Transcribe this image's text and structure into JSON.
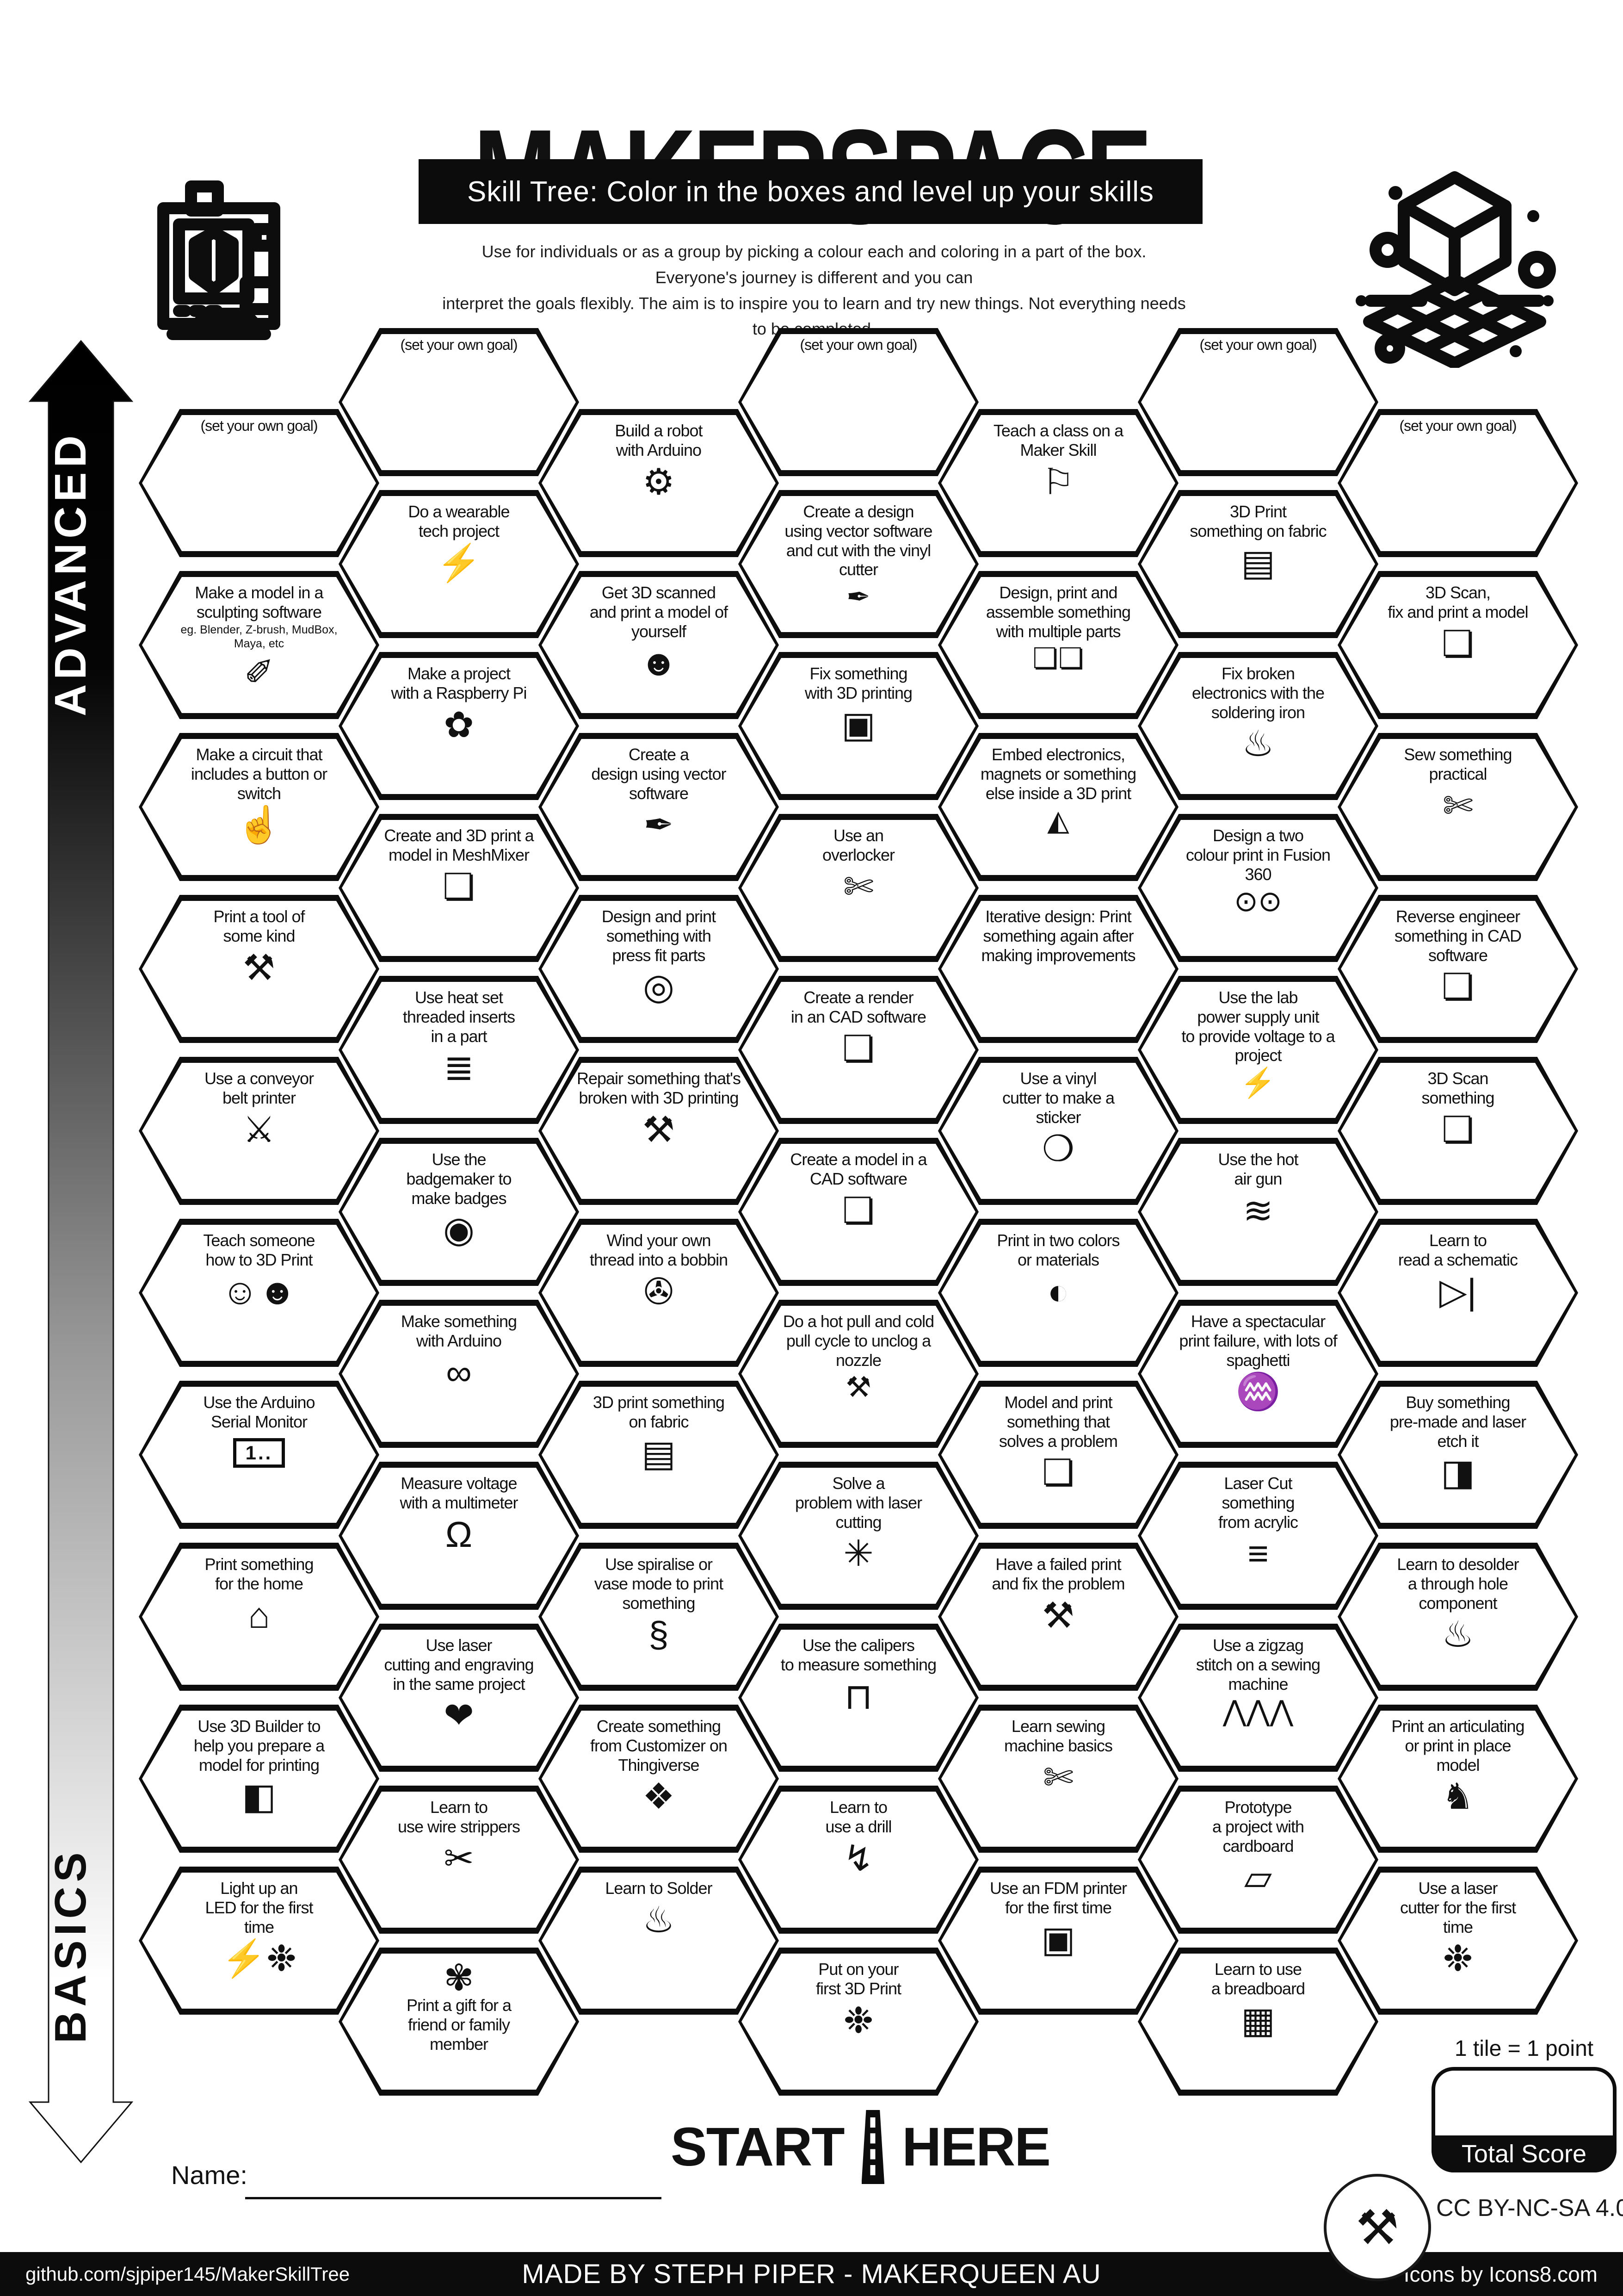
{
  "header": {
    "title": "MAKERSPACE",
    "subtitle": "Skill Tree:  Color in the boxes and level up your skills",
    "description": "Use for individuals or as a group by picking a colour each and coloring in a part of the box.  Everyone's journey is different and you can\ninterpret the goals flexibly.  The aim is to inspire you to learn and try new things. Not everything needs to be completed."
  },
  "axis": {
    "advanced": "ADVANCED",
    "basics": "BASICS"
  },
  "start": {
    "start_label": "START",
    "here_label": "HERE"
  },
  "name_label": "Name:",
  "score": {
    "note": "1 tile = 1 point",
    "total_label": "Total Score"
  },
  "license_label": "CC BY-NC-SA 4.0",
  "footer": {
    "left": "github.com/sjpiper145/MakerSkillTree",
    "center": "MADE BY STEPH PIPER  -  MAKERQUEEN AU",
    "right": "Icons by Icons8.com"
  },
  "accent_color": "#0d0d0d",
  "hexes": [
    {
      "id": "goal-col1",
      "col": 1,
      "row": 0,
      "goal": true,
      "label": "(set your own goal)",
      "icon": null
    },
    {
      "id": "sculpting-model",
      "col": 1,
      "row": 1,
      "label": "Make a model in a\nsculpting software",
      "sub": "eg. Blender, Z-brush, MudBox,\nMaya, etc",
      "icon": "sculpture-icon",
      "glyph": "✐"
    },
    {
      "id": "circuit-button",
      "col": 1,
      "row": 2,
      "label": "Make a circuit that\nincludes a button or\nswitch",
      "icon": "finger-press-icon",
      "glyph": "☝"
    },
    {
      "id": "print-tool",
      "col": 1,
      "row": 3,
      "label": "Print a tool of\nsome kind",
      "icon": "crossed-tools-icon",
      "glyph": "⚒"
    },
    {
      "id": "conveyor-printer",
      "col": 1,
      "row": 4,
      "label": "Use a conveyor\nbelt printer",
      "icon": "sword-icon",
      "glyph": "⚔"
    },
    {
      "id": "teach-3dprint",
      "col": 1,
      "row": 5,
      "label": "Teach someone\nhow to 3D Print",
      "icon": "two-people-icon",
      "glyph": "☺☻"
    },
    {
      "id": "serial-monitor",
      "col": 1,
      "row": 6,
      "label": "Use the Arduino\nSerial Monitor",
      "icon": "serial-monitor-icon",
      "glyph": "1..",
      "glyph_class": "icon-box"
    },
    {
      "id": "print-home",
      "col": 1,
      "row": 7,
      "label": "Print something\nfor the home",
      "icon": "house-icon",
      "glyph": "⌂"
    },
    {
      "id": "3d-builder",
      "col": 1,
      "row": 8,
      "label": "Use 3D Builder to\nhelp you prepare a\nmodel for printing",
      "icon": "builder-shape-icon",
      "glyph": "◧"
    },
    {
      "id": "led-first-time",
      "col": 1,
      "row": 9,
      "label": "Light up an\nLED for the first\ntime",
      "icon": "led-party-icon",
      "glyph": "⚡❉"
    },
    {
      "id": "goal-col2",
      "col": 2,
      "row": 0,
      "goal": true,
      "label": "(set your own goal)",
      "icon": null
    },
    {
      "id": "wearable-tech",
      "col": 2,
      "row": 1,
      "label": "Do a wearable\ntech project",
      "icon": "led-bolt-icon",
      "glyph": "⚡"
    },
    {
      "id": "raspberry-pi",
      "col": 2,
      "row": 2,
      "label": "Make a project\nwith a Raspberry Pi",
      "icon": "raspberry-icon",
      "glyph": "✿"
    },
    {
      "id": "meshmixer",
      "col": 2,
      "row": 3,
      "label": "Create and 3D print a\nmodel in MeshMixer",
      "icon": "cube-icon",
      "glyph": "❏"
    },
    {
      "id": "heat-set-inserts",
      "col": 2,
      "row": 4,
      "label": "Use heat set\nthreaded inserts\nin a part",
      "icon": "threaded-screw-icon",
      "glyph": "≣"
    },
    {
      "id": "badgemaker",
      "col": 2,
      "row": 5,
      "label": "Use the\nbadgemaker to\nmake badges",
      "icon": "badge-icon",
      "glyph": "◉"
    },
    {
      "id": "arduino-something",
      "col": 2,
      "row": 6,
      "label": "Make something\nwith Arduino",
      "icon": "arduino-icon",
      "glyph": "∞"
    },
    {
      "id": "multimeter",
      "col": 2,
      "row": 7,
      "label": "Measure voltage\nwith a multimeter",
      "icon": "multimeter-icon",
      "glyph": "Ω"
    },
    {
      "id": "laser-engrave-project",
      "col": 2,
      "row": 8,
      "label": "Use laser\ncutting and engraving\nin the same project",
      "icon": "laser-heart-icon",
      "glyph": "❤"
    },
    {
      "id": "wire-strippers",
      "col": 2,
      "row": 9,
      "label": "Learn to\nuse wire strippers",
      "icon": "wire-strippers-icon",
      "glyph": "✂"
    },
    {
      "id": "print-gift",
      "col": 2,
      "row": 10,
      "label": "Print a gift for a\nfriend or family\nmember",
      "icon": "gift-bow-icon",
      "glyph": "✾",
      "icon_pos": "top"
    },
    {
      "id": "robot-arduino",
      "col": 3,
      "row": 0,
      "label": "Build a robot\nwith Arduino",
      "icon": "robot-icon",
      "glyph": "⚙"
    },
    {
      "id": "get-3d-scanned",
      "col": 3,
      "row": 1,
      "label": "Get 3D scanned\nand print a model of\nyourself",
      "icon": "scanned-head-icon",
      "glyph": "☻"
    },
    {
      "id": "vector-design",
      "col": 3,
      "row": 2,
      "label": "Create a\ndesign  using vector\nsoftware",
      "icon": "pen-nib-icon",
      "glyph": "✒"
    },
    {
      "id": "press-fit",
      "col": 3,
      "row": 3,
      "label": "Design and print\nsomething with\npress fit parts",
      "icon": "cylinder-icon",
      "glyph": "◎"
    },
    {
      "id": "repair-3dprint",
      "col": 3,
      "row": 4,
      "label": "Repair something that's\nbroken with 3D printing",
      "icon": "crossed-tools-icon",
      "glyph": "⚒"
    },
    {
      "id": "wind-bobbin",
      "col": 3,
      "row": 5,
      "label": "Wind your own\nthread into a bobbin",
      "icon": "bobbin-icon",
      "glyph": "✇"
    },
    {
      "id": "print-fabric-3",
      "col": 3,
      "row": 6,
      "label": "3D print something\non fabric",
      "icon": "fabric-icon",
      "glyph": "▤"
    },
    {
      "id": "spiralise-vase",
      "col": 3,
      "row": 7,
      "label": "Use spiralise or\nvase mode to print\nsomething",
      "icon": "vase-icon",
      "glyph": "§"
    },
    {
      "id": "customizer-thingiverse",
      "col": 3,
      "row": 8,
      "label": "Create something\nfrom Customizer on\nThingiverse",
      "icon": "customizer-icon",
      "glyph": "❖"
    },
    {
      "id": "learn-solder",
      "col": 3,
      "row": 9,
      "label": "Learn to Solder",
      "icon": "soldering-iron-icon",
      "glyph": "♨"
    },
    {
      "id": "goal-col4",
      "col": 4,
      "row": 0,
      "goal": true,
      "label": "(set your own goal)",
      "icon": null
    },
    {
      "id": "vinyl-vector-cut",
      "col": 4,
      "row": 1,
      "label": "Create a  design\nusing vector software\nand cut with the vinyl\ncutter",
      "icon": "pen-nib-icon",
      "glyph": "✒",
      "glyph_class": "small"
    },
    {
      "id": "fix-with-3dprint",
      "col": 4,
      "row": 2,
      "label": "Fix something\nwith 3D printing",
      "icon": "printer-3d-icon",
      "glyph": "▣"
    },
    {
      "id": "overlocker",
      "col": 4,
      "row": 3,
      "label": "Use an\noverlocker",
      "icon": "sewing-machine-icon",
      "glyph": "✄"
    },
    {
      "id": "cad-render",
      "col": 4,
      "row": 4,
      "label": "Create a render\nin an CAD software",
      "icon": "cube-icon",
      "glyph": "❏"
    },
    {
      "id": "cad-model",
      "col": 4,
      "row": 5,
      "label": "Create a model in a\nCAD software",
      "icon": "cube-icon",
      "glyph": "❏"
    },
    {
      "id": "unclog-nozzle",
      "col": 4,
      "row": 6,
      "label": "Do a hot pull and cold\npull cycle to unclog a\nnozzle",
      "icon": "crossed-tools-icon",
      "glyph": "⚒",
      "glyph_class": "small"
    },
    {
      "id": "laser-solve",
      "col": 4,
      "row": 7,
      "label": "Solve a\nproblem with laser\ncutting",
      "icon": "gear-laser-icon",
      "glyph": "✳"
    },
    {
      "id": "calipers",
      "col": 4,
      "row": 8,
      "label": "Use the calipers\nto measure something",
      "icon": "calipers-icon",
      "glyph": "⊓"
    },
    {
      "id": "learn-drill",
      "col": 4,
      "row": 9,
      "label": "Learn to\nuse a drill",
      "icon": "drill-icon",
      "glyph": "↯"
    },
    {
      "id": "first-3d-print",
      "col": 4,
      "row": 10,
      "label": "Put on your\nfirst 3D Print",
      "icon": "party-popper-icon",
      "glyph": "❉"
    },
    {
      "id": "teach-class",
      "col": 5,
      "row": 0,
      "label": "Teach a class on a\nMaker Skill",
      "icon": "presenter-icon",
      "glyph": "⚐"
    },
    {
      "id": "multiple-parts",
      "col": 5,
      "row": 1,
      "label": "Design, print and\nassemble something\nwith multiple parts",
      "icon": "three-cubes-icon",
      "glyph": "❏❏",
      "glyph_class": "small"
    },
    {
      "id": "embed-electronics",
      "col": 5,
      "row": 2,
      "label": "Embed electronics,\nmagnets or something\nelse inside a 3D print",
      "icon": "led-icon",
      "glyph": "◭",
      "glyph_class": "small"
    },
    {
      "id": "iterative-design",
      "col": 5,
      "row": 3,
      "label": "Iterative design: Print\nsomething again after\nmaking improvements",
      "icon": null
    },
    {
      "id": "vinyl-sticker",
      "col": 5,
      "row": 4,
      "label": "Use a vinyl\ncutter to make a\nsticker",
      "icon": "sticker-peel-icon",
      "glyph": "❍"
    },
    {
      "id": "two-colors",
      "col": 5,
      "row": 5,
      "label": "Print in two colors\nor materials",
      "icon": "two-tone-wheel-icon",
      "glyph": "◐"
    },
    {
      "id": "solves-problem",
      "col": 5,
      "row": 6,
      "label": "Model and print\nsomething that\nsolves a problem",
      "icon": "cube-icon",
      "glyph": "❏"
    },
    {
      "id": "failed-print-fix",
      "col": 5,
      "row": 7,
      "label": "Have a failed print\nand fix the problem",
      "icon": "crossed-tools-icon",
      "glyph": "⚒"
    },
    {
      "id": "sewing-basics",
      "col": 5,
      "row": 8,
      "label": "Learn sewing\nmachine basics",
      "icon": "sewing-machine-icon",
      "glyph": "✄"
    },
    {
      "id": "fdm-first-time",
      "col": 5,
      "row": 9,
      "label": "Use an FDM printer\nfor the first time",
      "icon": "printer-3d-icon",
      "glyph": "▣"
    },
    {
      "id": "goal-col6",
      "col": 6,
      "row": 0,
      "goal": true,
      "label": "(set your own goal)",
      "icon": null
    },
    {
      "id": "print-fabric-6",
      "col": 6,
      "row": 1,
      "label": "3D Print\nsomething on fabric",
      "icon": "fabric-icon",
      "glyph": "▤"
    },
    {
      "id": "fix-electronics",
      "col": 6,
      "row": 2,
      "label": "Fix broken\nelectronics with the\nsoldering iron",
      "icon": "soldering-iron-icon",
      "glyph": "♨"
    },
    {
      "id": "fusion-two-colour",
      "col": 6,
      "row": 3,
      "label": "Design a two\ncolour print in Fusion\n360",
      "icon": "filament-spools-icon",
      "glyph": "⊙⊙",
      "glyph_class": "small"
    },
    {
      "id": "lab-power-supply",
      "col": 6,
      "row": 4,
      "label": "Use the lab\npower supply unit\nto provide voltage to a\nproject",
      "icon": "voltage-bolt-icon",
      "glyph": "⚡",
      "glyph_class": "small"
    },
    {
      "id": "hot-air-gun",
      "col": 6,
      "row": 5,
      "label": "Use the hot\nair gun",
      "icon": "heat-gun-icon",
      "glyph": "≋"
    },
    {
      "id": "spaghetti-failure",
      "col": 6,
      "row": 6,
      "label": "Have a spectacular\nprint failure, with lots of\nspaghetti",
      "icon": "spaghetti-bowl-icon",
      "glyph": "♒"
    },
    {
      "id": "laser-acrylic",
      "col": 6,
      "row": 7,
      "label": "Laser Cut\nsomething\nfrom acrylic",
      "icon": "acrylic-layers-icon",
      "glyph": "≡"
    },
    {
      "id": "zigzag-stitch",
      "col": 6,
      "row": 8,
      "label": "Use a zigzag\nstitch on a sewing\nmachine",
      "icon": "zigzag-icon",
      "glyph": "⋀⋀⋀",
      "glyph_class": "small"
    },
    {
      "id": "cardboard-prototype",
      "col": 6,
      "row": 9,
      "label": "Prototype\na project with\ncardboard",
      "icon": "cardboard-icon",
      "glyph": "▱"
    },
    {
      "id": "breadboard",
      "col": 6,
      "row": 10,
      "label": "Learn to use\na breadboard",
      "icon": "breadboard-icon",
      "glyph": "▦"
    },
    {
      "id": "goal-col7",
      "col": 7,
      "row": 0,
      "goal": true,
      "label": "(set your own goal)",
      "icon": null
    },
    {
      "id": "scan-fix-print",
      "col": 7,
      "row": 1,
      "label": "3D Scan,\nfix and print a model",
      "icon": "cube-cursor-icon",
      "glyph": "❏"
    },
    {
      "id": "sew-practical",
      "col": 7,
      "row": 2,
      "label": "Sew something\npractical",
      "icon": "tote-bag-icon",
      "glyph": "✄"
    },
    {
      "id": "reverse-engineer",
      "col": 7,
      "row": 3,
      "label": "Reverse engineer\nsomething in CAD\nsoftware",
      "icon": "cube-icon",
      "glyph": "❏"
    },
    {
      "id": "scan-something",
      "col": 7,
      "row": 4,
      "label": "3D Scan\nsomething",
      "icon": "cube-cursor-icon",
      "glyph": "❏"
    },
    {
      "id": "read-schematic",
      "col": 7,
      "row": 5,
      "label": "Learn to\nread a schematic",
      "icon": "diode-icon",
      "glyph": "▷|"
    },
    {
      "id": "laser-etch-premade",
      "col": 7,
      "row": 6,
      "label": "Buy something\npre-made and laser\netch it",
      "icon": "etched-tag-icon",
      "glyph": "◨"
    },
    {
      "id": "desolder",
      "col": 7,
      "row": 7,
      "label": "Learn to desolder\na through hole\ncomponent",
      "icon": "soldering-iron-icon",
      "glyph": "♨"
    },
    {
      "id": "articulating-print",
      "col": 7,
      "row": 8,
      "label": "Print an articulating\nor print in place\nmodel",
      "icon": "dragon-icon",
      "glyph": "♞"
    },
    {
      "id": "laser-first-time",
      "col": 7,
      "row": 9,
      "label": "Use a laser\ncutter for the first\ntime",
      "icon": "party-popper-icon",
      "glyph": "❉"
    }
  ]
}
